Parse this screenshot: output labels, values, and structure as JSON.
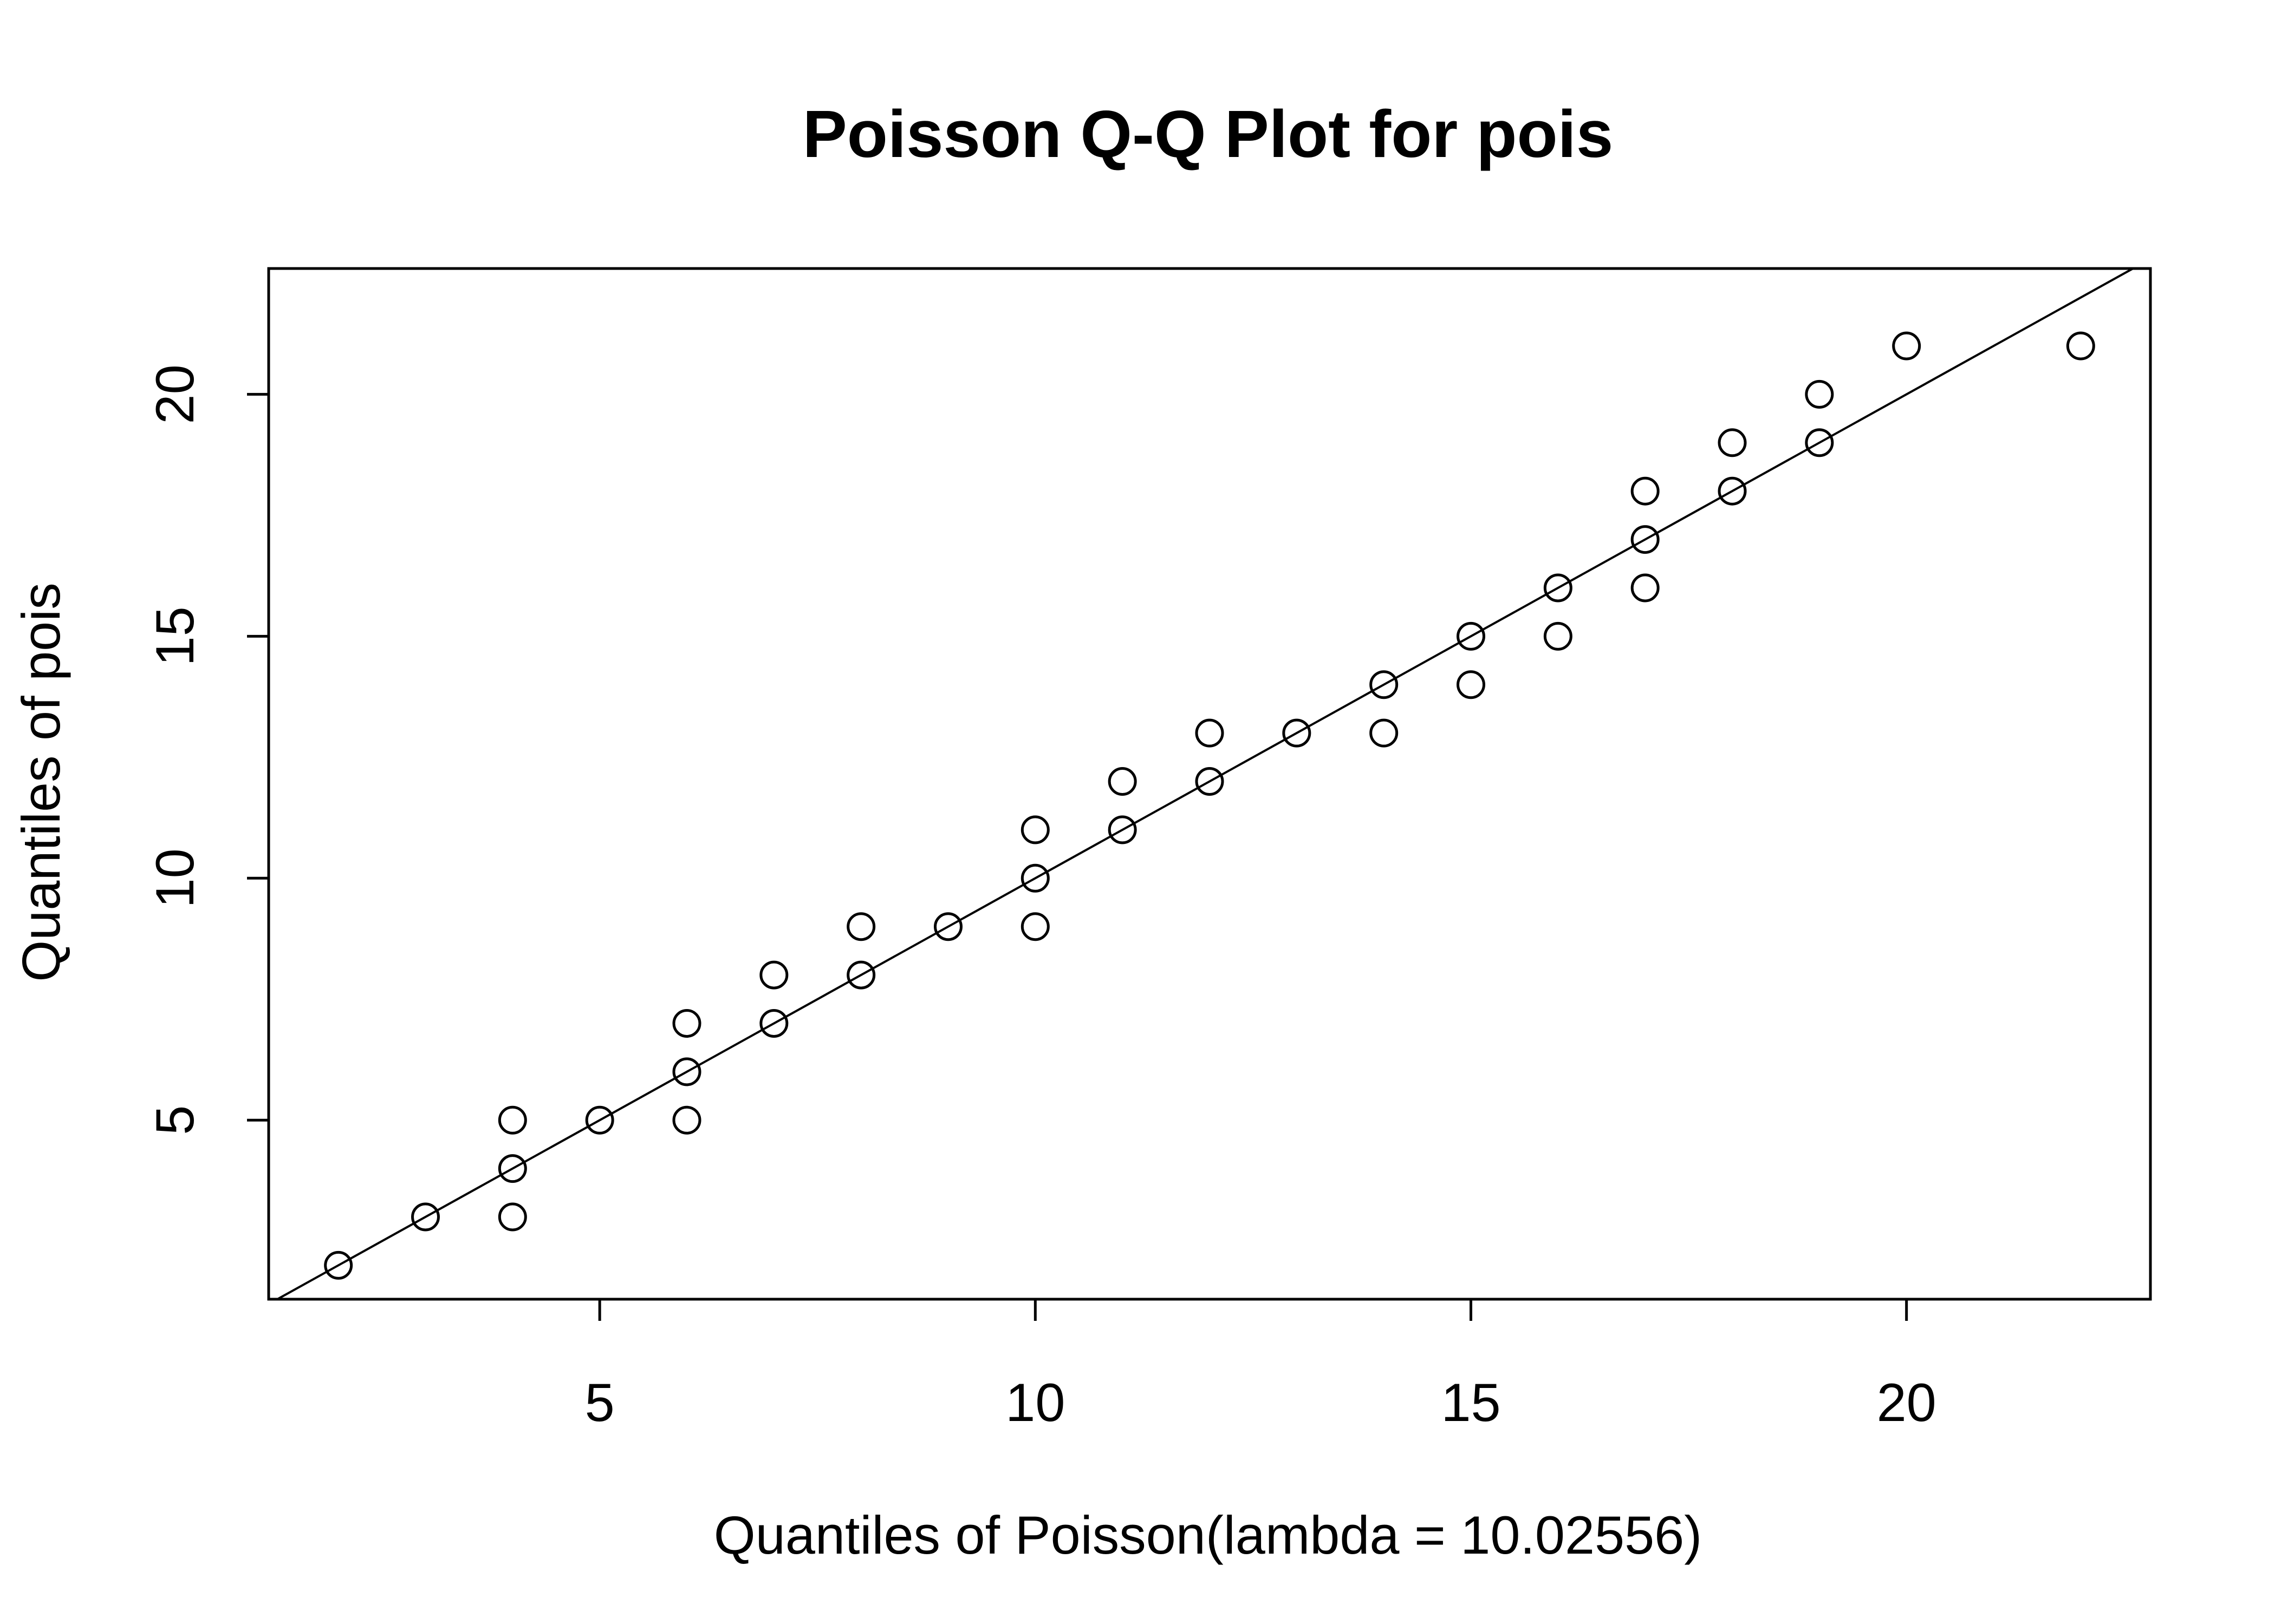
{
  "chart_data": {
    "type": "scatter",
    "title": "Poisson Q-Q Plot for pois",
    "xlabel": "Quantiles of Poisson(lambda = 10.02556)",
    "ylabel": "Quantiles of pois",
    "xlim": [
      1.2,
      22.8
    ],
    "ylim": [
      1.3,
      22.6
    ],
    "x_ticks": [
      5,
      10,
      15,
      20
    ],
    "y_ticks": [
      5,
      10,
      15,
      20
    ],
    "grid": false,
    "legend": "none",
    "marker": "open-circle",
    "reference_line": {
      "intercept": 0,
      "slope": 1
    },
    "series": [
      {
        "x": [
          2,
          3,
          4,
          4,
          4,
          5,
          6,
          6,
          6,
          7,
          7,
          8,
          8,
          9,
          10,
          10,
          10,
          11,
          11,
          12,
          12,
          13,
          14,
          14,
          15,
          15,
          16,
          16,
          17,
          17,
          17,
          18,
          18,
          19,
          19,
          20,
          22
        ],
        "y": [
          2,
          3,
          3,
          4,
          5,
          5,
          5,
          6,
          7,
          7,
          8,
          8,
          9,
          9,
          9,
          10,
          11,
          11,
          12,
          12,
          13,
          13,
          13,
          14,
          14,
          15,
          15,
          16,
          16,
          17,
          18,
          18,
          19,
          19,
          20,
          21,
          21
        ]
      }
    ]
  }
}
